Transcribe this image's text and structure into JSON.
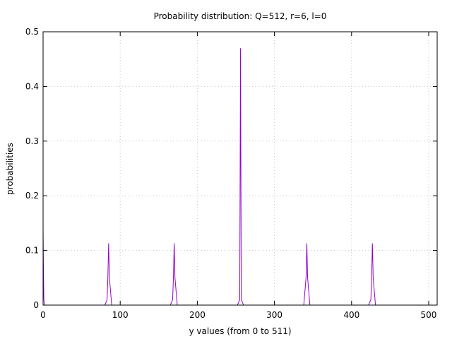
{
  "chart_data": {
    "type": "line",
    "title": "Probability distribution: Q=512, r=6, l=0",
    "xlabel": "y values (from 0 to 511)",
    "ylabel": "probabilities",
    "xlim": [
      0,
      511
    ],
    "ylim": [
      0,
      0.5
    ],
    "xticks": [
      0,
      100,
      200,
      300,
      400,
      500
    ],
    "yticks": [
      0,
      0.1,
      0.2,
      0.3,
      0.4,
      0.5
    ],
    "xtick_labels": [
      "0",
      "100",
      "200",
      "300",
      "400",
      "500"
    ],
    "ytick_labels": [
      "0",
      "0.1",
      "0.2",
      "0.3",
      "0.4",
      "0.5"
    ],
    "grid": true,
    "legend": "none",
    "line_color": "#9400d3",
    "series": [
      {
        "x": [
          0,
          0.5,
          1,
          2,
          80,
          83,
          84,
          85,
          86,
          89,
          165,
          168,
          169,
          170,
          171,
          174,
          252,
          255,
          256,
          257,
          260,
          338,
          341,
          342,
          343,
          346,
          422,
          425,
          426,
          427,
          428,
          431,
          511
        ],
        "values": [
          0.14,
          0.06,
          0.01,
          0.0,
          0.0,
          0.01,
          0.05,
          0.113,
          0.05,
          0.0,
          0.0,
          0.01,
          0.05,
          0.113,
          0.05,
          0.0,
          0.0,
          0.01,
          0.47,
          0.01,
          0.0,
          0.0,
          0.05,
          0.113,
          0.05,
          0.0,
          0.0,
          0.01,
          0.05,
          0.113,
          0.05,
          0.0,
          0.0
        ]
      }
    ]
  }
}
